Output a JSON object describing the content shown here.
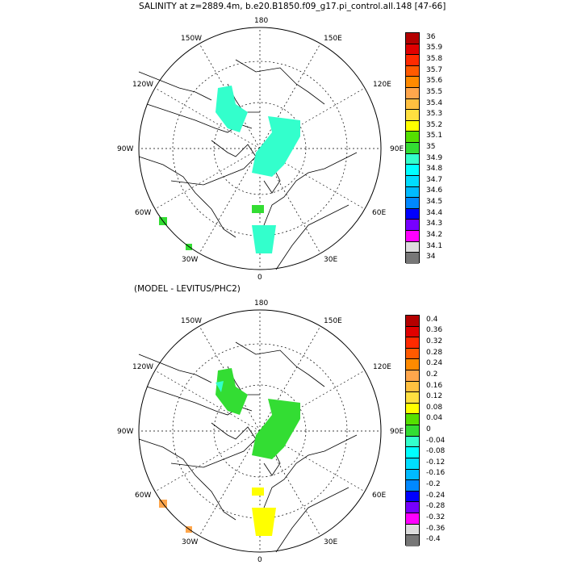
{
  "panels": [
    {
      "title": "SALINITY at z=2889.4m, b.e20.B1850.f09_g17.pi_control.all.148 [47-66]",
      "lon_labels": {
        "top": "180",
        "top_left": "150W",
        "top_right": "150E",
        "upper_left": "120W",
        "upper_right": "120E",
        "left": "90W",
        "right": "90E",
        "lower_left": "60W",
        "lower_right": "60E",
        "bottom_left": "30W",
        "bottom_right": "30E",
        "bottom": "0"
      },
      "colorbar_ticks": [
        "36",
        "35.9",
        "35.8",
        "35.7",
        "35.6",
        "35.5",
        "35.4",
        "35.3",
        "35.2",
        "35.1",
        "35",
        "34.9",
        "34.8",
        "34.7",
        "34.6",
        "34.5",
        "34.4",
        "34.3",
        "34.2",
        "34.1",
        "34"
      ],
      "colorbar_colors": [
        "#b40000",
        "#e00000",
        "#ff2a00",
        "#ff5a00",
        "#ff8a00",
        "#ffa64c",
        "#ffc040",
        "#ffe040",
        "#ffff00",
        "#55e000",
        "#33dd33",
        "#33ffcc",
        "#00ffff",
        "#00ddff",
        "#00bbff",
        "#0088ff",
        "#0000ff",
        "#7700ff",
        "#ff00ff",
        "#dddddd",
        "#777777"
      ]
    },
    {
      "title": "(MODEL - LEVITUS/PHC2)",
      "lon_labels": {
        "top": "180",
        "top_left": "150W",
        "top_right": "150E",
        "upper_left": "120W",
        "upper_right": "120E",
        "left": "90W",
        "right": "90E",
        "lower_left": "60W",
        "lower_right": "60E",
        "bottom_left": "30W",
        "bottom_right": "30E",
        "bottom": "0"
      },
      "colorbar_ticks": [
        "0.4",
        "0.36",
        "0.32",
        "0.28",
        "0.24",
        "0.2",
        "0.16",
        "0.12",
        "0.08",
        "0.04",
        "0",
        "-0.04",
        "-0.08",
        "-0.12",
        "-0.16",
        "-0.2",
        "-0.24",
        "-0.28",
        "-0.32",
        "-0.36",
        "-0.4"
      ],
      "colorbar_colors": [
        "#b40000",
        "#e00000",
        "#ff2a00",
        "#ff5a00",
        "#ff8a00",
        "#ffa64c",
        "#ffc040",
        "#ffe040",
        "#ffff00",
        "#55e000",
        "#33dd33",
        "#33ffcc",
        "#00ffff",
        "#00ddff",
        "#00bbff",
        "#0088ff",
        "#0000ff",
        "#7700ff",
        "#ff00ff",
        "#dddddd",
        "#777777"
      ]
    }
  ]
}
